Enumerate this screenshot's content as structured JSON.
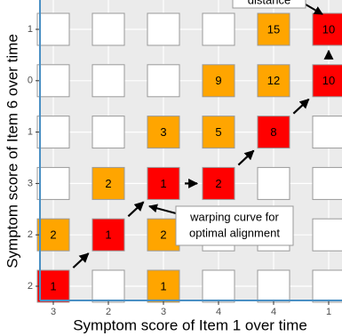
{
  "chart_data": {
    "type": "grid",
    "xlabel": "Symptom score of Item 1 over time",
    "ylabel": "Symptom score of Item 6 over time",
    "categories": [
      "3",
      "2",
      "3",
      "4",
      "4",
      "1"
    ],
    "rows": [
      "1",
      "0",
      "1",
      "3",
      "2",
      "2"
    ],
    "values": [
      [
        null,
        null,
        null,
        null,
        15,
        10
      ],
      [
        null,
        null,
        null,
        9,
        12,
        10
      ],
      [
        null,
        null,
        3,
        5,
        8,
        null
      ],
      [
        null,
        2,
        1,
        2,
        null,
        null
      ],
      [
        2,
        1,
        2,
        null,
        null,
        null
      ],
      [
        1,
        null,
        1,
        null,
        null,
        null
      ]
    ],
    "path": [
      [
        5,
        0
      ],
      [
        4,
        1
      ],
      [
        3,
        2
      ],
      [
        3,
        3
      ],
      [
        2,
        4
      ],
      [
        1,
        5
      ],
      [
        0,
        5
      ]
    ],
    "cell_color": "#ffa500",
    "path_color": "#ff0000",
    "empty_color": "#ffffff",
    "annotations": [
      {
        "lines": [
          "warping curve for",
          "optimal alignment"
        ]
      },
      {
        "lines": [
          "distance"
        ]
      }
    ],
    "grid": true
  }
}
